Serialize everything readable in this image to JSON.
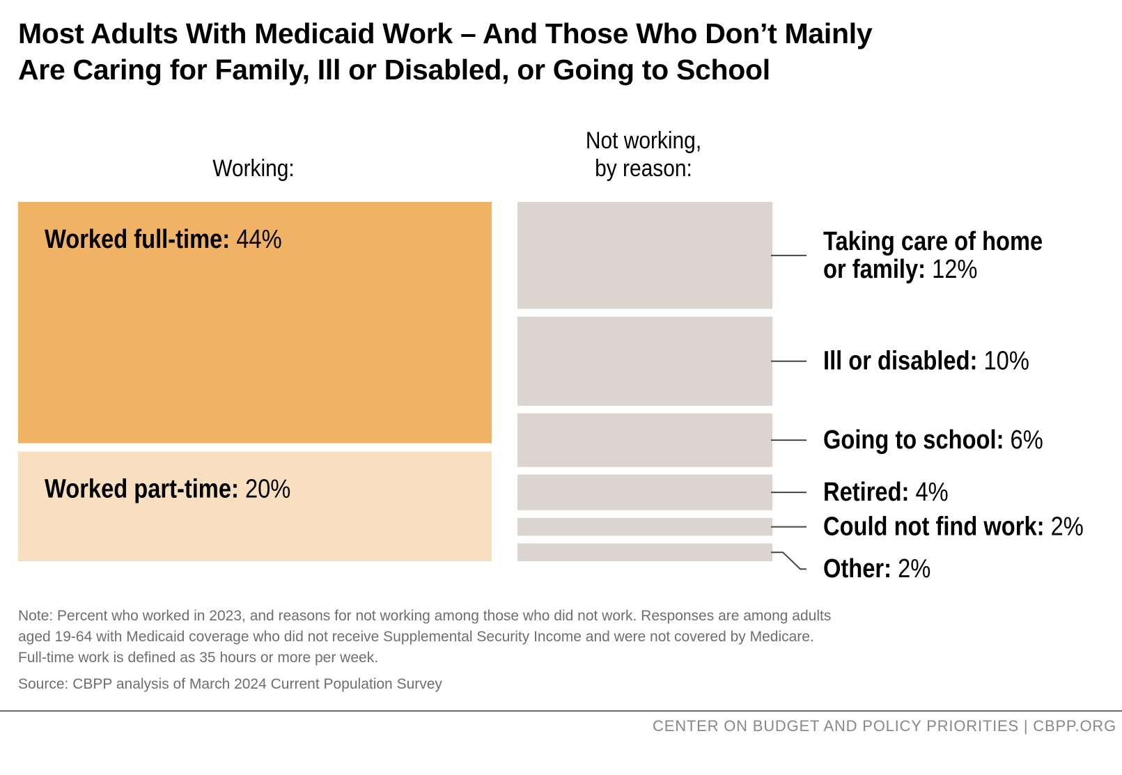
{
  "title": {
    "line1": "Most Adults With Medicaid Work – And Those Who Don’t Mainly",
    "line2": "Are Caring for Family, Ill or Disabled, or Going to School"
  },
  "colors": {
    "full_time": "#f0b265",
    "part_time": "#f8dfbf",
    "not_working": "#dbd5cf",
    "leader": "#444444",
    "note_text": "#6e6e6e"
  },
  "chart_data": {
    "type": "stacked-block",
    "groups": [
      {
        "name": "Working",
        "heading": [
          "Working:"
        ],
        "segments": [
          {
            "label": "Worked full-time:",
            "value": 44,
            "value_label": "44%"
          },
          {
            "label": "Worked part-time:",
            "value": 20,
            "value_label": "20%"
          }
        ]
      },
      {
        "name": "Not working, by reason",
        "heading": [
          "Not working,",
          "by reason:"
        ],
        "segments": [
          {
            "label_lines": [
              "Taking care of home",
              "or family:"
            ],
            "value": 12,
            "value_label": "12%"
          },
          {
            "label_lines": [
              "Ill or disabled:"
            ],
            "value": 10,
            "value_label": "10%"
          },
          {
            "label_lines": [
              "Going to school:"
            ],
            "value": 6,
            "value_label": "6%"
          },
          {
            "label_lines": [
              "Retired:"
            ],
            "value": 4,
            "value_label": "4%"
          },
          {
            "label_lines": [
              "Could not find work:"
            ],
            "value": 2,
            "value_label": "2%"
          },
          {
            "label_lines": [
              "Other:"
            ],
            "value": 2,
            "value_label": "2%"
          }
        ]
      }
    ],
    "unit": "%"
  },
  "note": {
    "line1": "Note: Percent who worked in 2023, and reasons for not working among those who did not work. Responses are among adults",
    "line2": "aged 19-64 with Medicaid coverage who did not receive Supplemental Security Income and were not covered by Medicare.",
    "line3": "Full-time work is defined as 35 hours or more per week."
  },
  "source": "Source: CBPP analysis of March 2024 Current Population Survey",
  "footer": "CENTER ON BUDGET AND POLICY PRIORITIES | CBPP.ORG"
}
